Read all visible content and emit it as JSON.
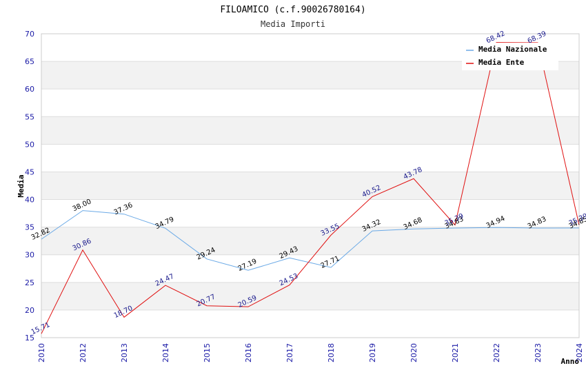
{
  "chart_data": {
    "type": "line",
    "title": "FILOAMICO (c.f.90026780164)",
    "subtitle": "Media Importi",
    "xlabel": "Anno",
    "ylabel": "Media",
    "ylim": [
      15,
      70
    ],
    "yticks": [
      "15",
      "20",
      "25",
      "30",
      "35",
      "40",
      "45",
      "50",
      "55",
      "60",
      "65",
      "70"
    ],
    "categories": [
      "2010",
      "2012",
      "2013",
      "2014",
      "2015",
      "2016",
      "2017",
      "2018",
      "2019",
      "2020",
      "2021",
      "2022",
      "2023",
      "2024"
    ],
    "series": [
      {
        "name": "Media Nazionale",
        "color": "#6aa9e6",
        "values": [
          32.82,
          38.0,
          37.36,
          34.79,
          29.24,
          27.19,
          29.43,
          27.71,
          34.32,
          34.68,
          34.83,
          34.94,
          34.83,
          34.85
        ],
        "labels": [
          "32.82",
          "38.00",
          "37.36",
          "34.79",
          "29.24",
          "27.19",
          "29.43",
          "27.71",
          "34.32",
          "34.68",
          "34.83",
          "34.94",
          "34.83",
          "34.85"
        ]
      },
      {
        "name": "Media Ente",
        "color": "#e01010",
        "values": [
          15.71,
          30.86,
          18.7,
          24.47,
          20.77,
          20.59,
          24.53,
          33.55,
          40.52,
          43.78,
          35.39,
          68.42,
          68.39,
          35.39
        ],
        "labels": [
          "15.71",
          "30.86",
          "18.70",
          "24.47",
          "20.77",
          "20.59",
          "24.53",
          "33.55",
          "40.52",
          "43.78",
          "35.39",
          "68.42",
          "68.39",
          "35.39"
        ]
      }
    ],
    "legend": {
      "position": "top-right"
    },
    "grid": "alternating horizontal bands"
  }
}
